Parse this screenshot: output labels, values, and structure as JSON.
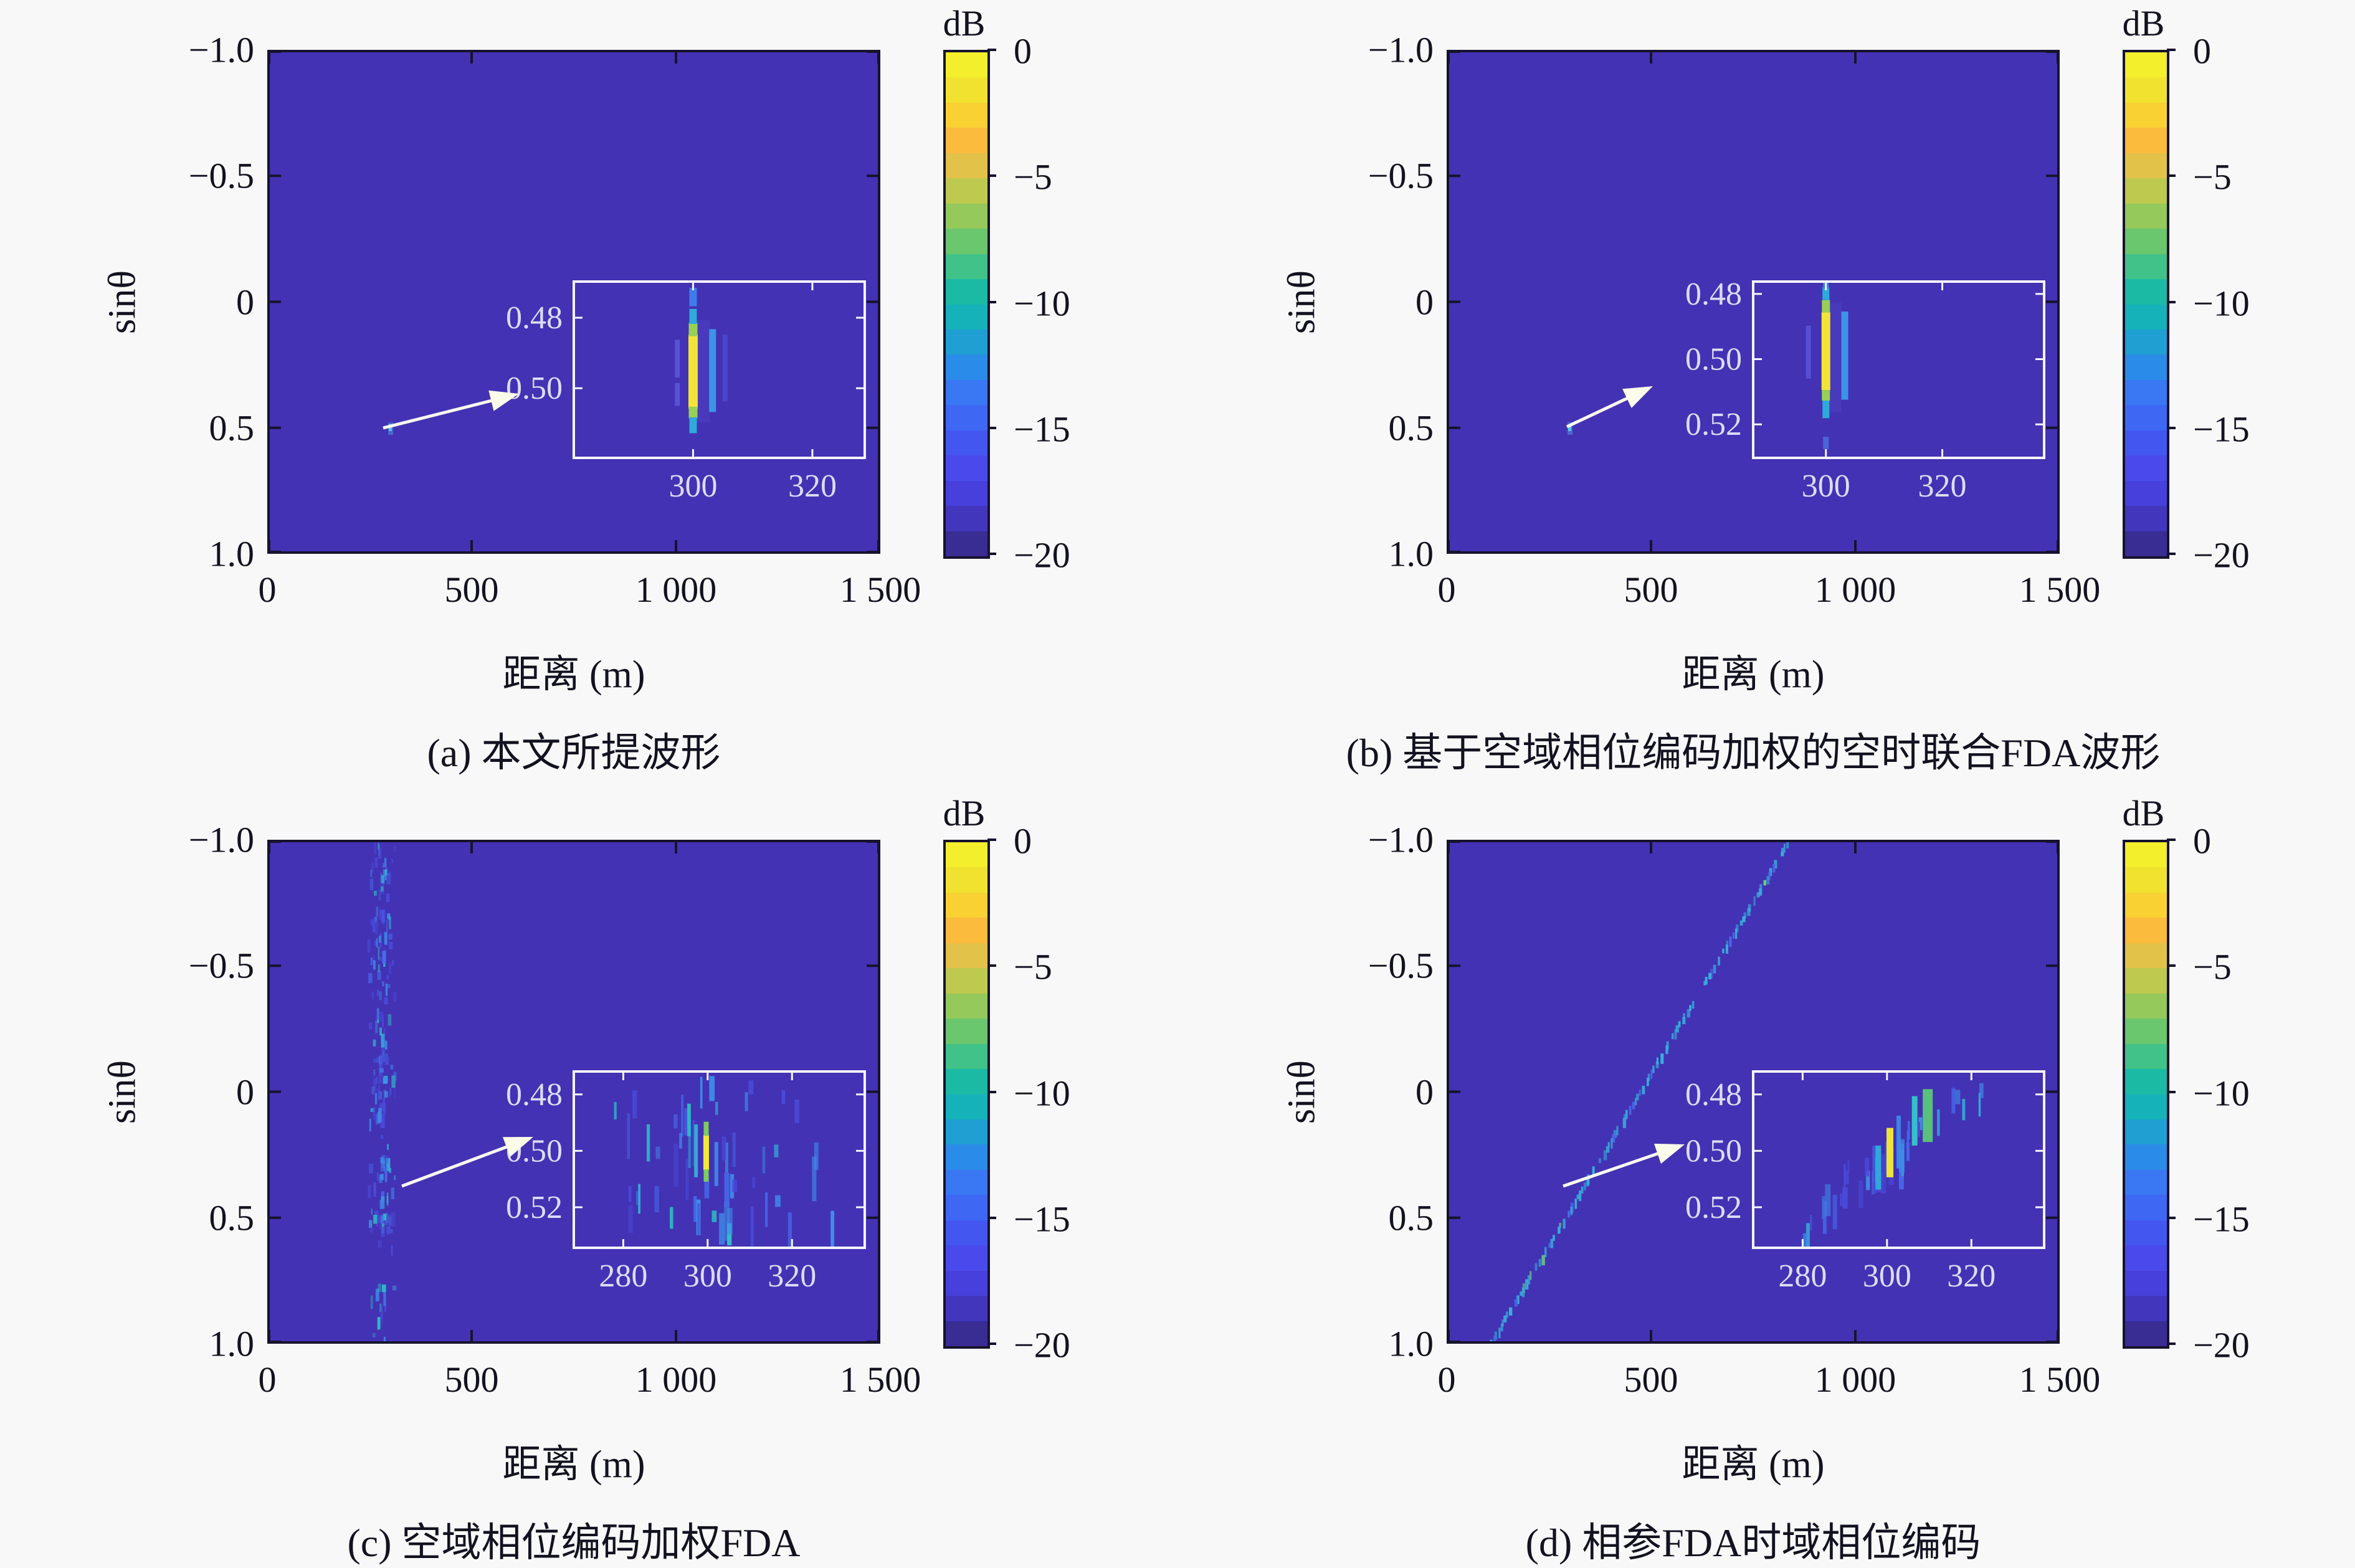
{
  "figure": {
    "background": "#f8f8f8",
    "plot_background": "#4332b4",
    "axis_color": "#16132d",
    "inset_border_color": "#f4f4fb",
    "inset_text_color": "#dcdcf4"
  },
  "colorbar": {
    "title": "dB",
    "tick_labels": [
      "0",
      "−5",
      "−10",
      "−15",
      "−20"
    ],
    "colors": [
      "#f3ef2c",
      "#f1e22f",
      "#f9d133",
      "#fbbb3c",
      "#e2c248",
      "#bec94f",
      "#95c95b",
      "#6bc76d",
      "#40c289",
      "#1bbaa5",
      "#15b2ba",
      "#1f9fd2",
      "#2b8be8",
      "#3a77f3",
      "#3e67f4",
      "#4357f0",
      "#4a4aec",
      "#4740dc",
      "#4136bc",
      "#392c93"
    ]
  },
  "axis": {
    "x_tick_labels": [
      "0",
      "500",
      "1 000",
      "1 500"
    ],
    "x_label": "距离 (m)",
    "y_tick_labels": [
      "−1.0",
      "−0.5",
      "0",
      "0.5",
      "1.0"
    ],
    "y_label": "sinθ"
  },
  "panels": [
    {
      "id": "a",
      "caption": "(a) 本文所提波形",
      "inset": {
        "x_ticks": [
          {
            "label": "300",
            "f": 0.41
          },
          {
            "label": "320",
            "f": 0.82
          }
        ],
        "y_ticks": [
          {
            "label": "0.48",
            "f": 0.205
          },
          {
            "label": "0.50",
            "f": 0.605
          }
        ]
      }
    },
    {
      "id": "b",
      "caption": "(b) 基于空域相位编码加权的空时联合FDA波形",
      "inset": {
        "x_ticks": [
          {
            "label": "300",
            "f": 0.25
          },
          {
            "label": "320",
            "f": 0.65
          }
        ],
        "y_ticks": [
          {
            "label": "0.48",
            "f": 0.07
          },
          {
            "label": "0.50",
            "f": 0.44
          },
          {
            "label": "0.52",
            "f": 0.81
          }
        ]
      }
    },
    {
      "id": "c",
      "caption": "(c) 空域相位编码加权FDA",
      "inset": {
        "x_ticks": [
          {
            "label": "280",
            "f": 0.17
          },
          {
            "label": "300",
            "f": 0.46
          },
          {
            "label": "320",
            "f": 0.75
          }
        ],
        "y_ticks": [
          {
            "label": "0.48",
            "f": 0.13
          },
          {
            "label": "0.50",
            "f": 0.45
          },
          {
            "label": "0.52",
            "f": 0.77
          }
        ]
      }
    },
    {
      "id": "d",
      "caption": "(d) 相参FDA时域相位编码",
      "inset": {
        "x_ticks": [
          {
            "label": "280",
            "f": 0.17
          },
          {
            "label": "300",
            "f": 0.46
          },
          {
            "label": "320",
            "f": 0.75
          }
        ],
        "y_ticks": [
          {
            "label": "0.48",
            "f": 0.13
          },
          {
            "label": "0.50",
            "f": 0.45
          },
          {
            "label": "0.52",
            "f": 0.77
          }
        ]
      }
    }
  ],
  "chart_data": [
    {
      "type": "heatmap",
      "panel": "a",
      "title": "(a) 本文所提波形",
      "xlabel": "距离 (m)",
      "ylabel": "sinθ",
      "x_range_m": [
        0,
        1500
      ],
      "x_tick_values": [
        0,
        500,
        1000,
        1500
      ],
      "y_range_sin_theta": [
        -1.0,
        1.0
      ],
      "y_tick_values": [
        -1.0,
        -0.5,
        0,
        0.5,
        1.0
      ],
      "y_axis_inverted": true,
      "colorbar": {
        "label": "dB",
        "range": [
          -20,
          0
        ],
        "discrete_steps": 20
      },
      "noise_floor_dB": -20,
      "mainlobe": {
        "range_m": 300,
        "sin_theta": 0.5,
        "level_dB": 0
      },
      "structure": "single isolated point target mainlobe at (300 m, sinθ=0.50); rest of map at clipped floor −20 dB",
      "inset": {
        "x_range_m": [
          280,
          328
        ],
        "y_range_sin_theta": [
          0.47,
          0.52
        ],
        "x_ticks": [
          300,
          320
        ],
        "y_ticks": [
          0.48,
          0.5
        ]
      }
    },
    {
      "type": "heatmap",
      "panel": "b",
      "title": "(b) 基于空域相位编码加权的空时联合FDA波形",
      "xlabel": "距离 (m)",
      "ylabel": "sinθ",
      "x_range_m": [
        0,
        1500
      ],
      "x_tick_values": [
        0,
        500,
        1000,
        1500
      ],
      "y_range_sin_theta": [
        -1.0,
        1.0
      ],
      "y_tick_values": [
        -1.0,
        -0.5,
        0,
        0.5,
        1.0
      ],
      "y_axis_inverted": true,
      "colorbar": {
        "label": "dB",
        "range": [
          -20,
          0
        ],
        "discrete_steps": 20
      },
      "noise_floor_dB": -20,
      "mainlobe": {
        "range_m": 300,
        "sin_theta": 0.5,
        "level_dB": 0
      },
      "structure": "single isolated point target mainlobe at (300 m, sinθ=0.50) with narrow range sidelobe; floor −20 dB",
      "inset": {
        "x_range_m": [
          287,
          337
        ],
        "y_range_sin_theta": [
          0.478,
          0.525
        ],
        "x_ticks": [
          300,
          320
        ],
        "y_ticks": [
          0.48,
          0.5,
          0.52
        ]
      }
    },
    {
      "type": "heatmap",
      "panel": "c",
      "title": "(c) 空域相位编码加权FDA",
      "xlabel": "距离 (m)",
      "ylabel": "sinθ",
      "x_range_m": [
        0,
        1500
      ],
      "x_tick_values": [
        0,
        500,
        1000,
        1500
      ],
      "y_range_sin_theta": [
        -1.0,
        1.0
      ],
      "y_tick_values": [
        -1.0,
        -0.5,
        0,
        0.5,
        1.0
      ],
      "y_axis_inverted": true,
      "colorbar": {
        "label": "dB",
        "range": [
          -20,
          0
        ],
        "discrete_steps": 20
      },
      "noise_floor_dB": -20,
      "mainlobe": {
        "range_m": 300,
        "sin_theta": 0.5,
        "level_dB": 0
      },
      "structure": "noisy vertical sidelobe ridge at range ≈280–300 m spanning all angles (≈ −15…−20 dB); mainlobe at (300 m, 0.50)",
      "inset": {
        "x_range_m": [
          270,
          335
        ],
        "y_range_sin_theta": [
          0.47,
          0.525
        ],
        "x_ticks": [
          280,
          300,
          320
        ],
        "y_ticks": [
          0.48,
          0.5,
          0.52
        ]
      }
    },
    {
      "type": "heatmap",
      "panel": "d",
      "title": "(d) 相参FDA时域相位编码",
      "xlabel": "距离 (m)",
      "ylabel": "sinθ",
      "x_range_m": [
        0,
        1500
      ],
      "x_tick_values": [
        0,
        500,
        1000,
        1500
      ],
      "y_range_sin_theta": [
        -1.0,
        1.0
      ],
      "y_tick_values": [
        -1.0,
        -0.5,
        0,
        0.5,
        1.0
      ],
      "y_axis_inverted": true,
      "colorbar": {
        "label": "dB",
        "range": [
          -20,
          0
        ],
        "discrete_steps": 20
      },
      "noise_floor_dB": -20,
      "mainlobe": {
        "range_m": 300,
        "sin_theta": 0.5,
        "level_dB": 0
      },
      "structure": "range–angle coupled diagonal ridge from ≈(100 m, sinθ=1.0) to ≈(840 m, sinθ=−1.0); mainlobe on ridge at (300 m, 0.50)",
      "diagonal_ridge_endpoints": [
        {
          "range_m": 100,
          "sin_theta": 1.0
        },
        {
          "range_m": 840,
          "sin_theta": -1.0
        }
      ],
      "inset": {
        "x_range_m": [
          270,
          335
        ],
        "y_range_sin_theta": [
          0.47,
          0.525
        ],
        "x_ticks": [
          280,
          300,
          320
        ],
        "y_ticks": [
          0.48,
          0.5,
          0.52
        ]
      }
    }
  ]
}
